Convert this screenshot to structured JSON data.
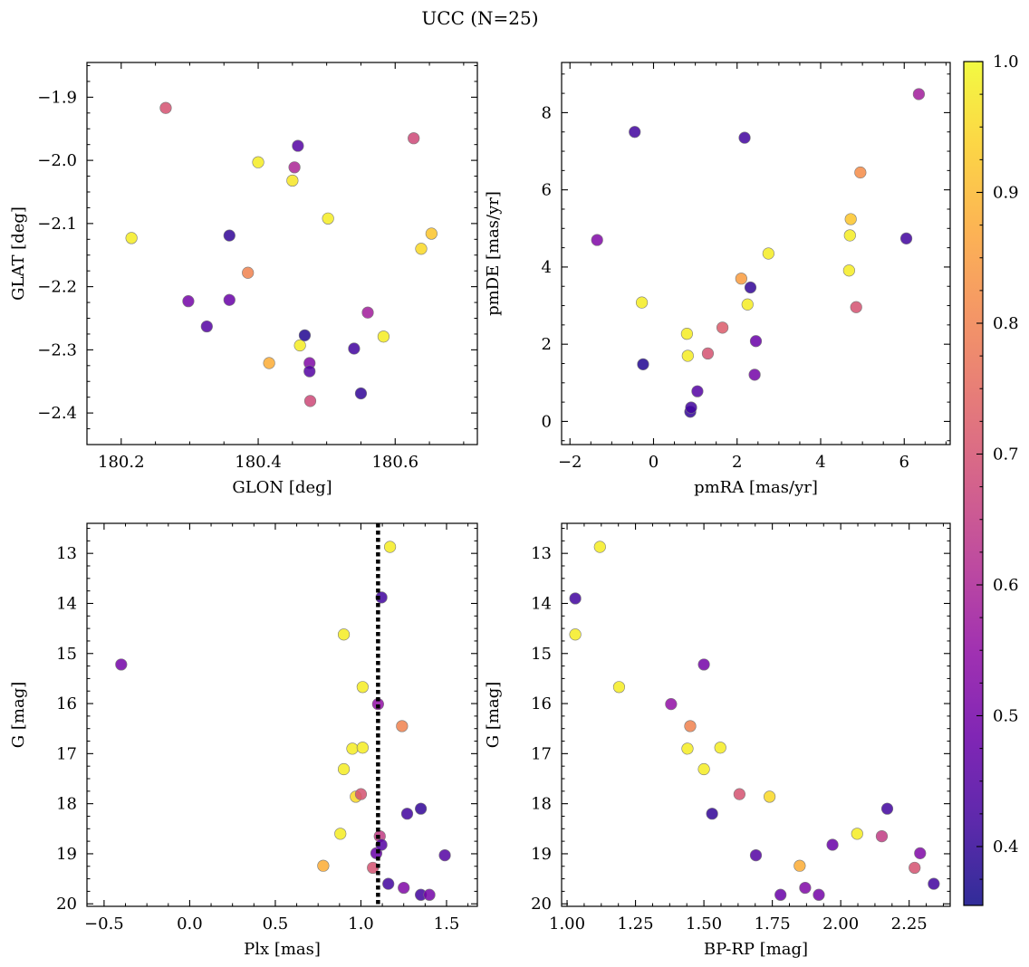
{
  "title": "UCC (N=25)",
  "colorbar": {
    "colormap": "plasma",
    "vmin": 0.355,
    "vmax": 1.0,
    "ticks": [
      0.4,
      0.5,
      0.6,
      0.7,
      0.8,
      0.9,
      1.0
    ],
    "tick_labels": [
      "0.4",
      "0.5",
      "0.6",
      "0.7",
      "0.8",
      "0.9",
      "1.0"
    ]
  },
  "chart_data": [
    {
      "type": "scatter",
      "id": "sky",
      "xlabel": "GLON [deg]",
      "ylabel": "GLAT [deg]",
      "xlim": [
        180.15,
        180.72
      ],
      "ylim": [
        -2.45,
        -1.845
      ],
      "xticks": [
        180.2,
        180.4,
        180.6
      ],
      "xtick_labels": [
        "180.2",
        "180.4",
        "180.6"
      ],
      "yticks": [
        -1.9,
        -2.0,
        -2.1,
        -2.2,
        -2.3,
        -2.4
      ],
      "ytick_labels": [
        "−1.9",
        "−2.0",
        "−2.1",
        "−2.2",
        "−2.3",
        "−2.4"
      ],
      "x": [
        180.215,
        180.265,
        180.298,
        180.325,
        180.358,
        180.358,
        180.385,
        180.4,
        180.416,
        180.45,
        180.453,
        180.458,
        180.461,
        180.468,
        180.475,
        180.475,
        180.476,
        180.502,
        180.54,
        180.55,
        180.56,
        180.583,
        180.627,
        180.638,
        180.653
      ],
      "y": [
        -2.123,
        -1.917,
        -2.223,
        -2.263,
        -2.119,
        -2.221,
        -2.178,
        -2.003,
        -2.321,
        -2.032,
        -2.011,
        -1.977,
        -2.293,
        -2.277,
        -2.321,
        -2.334,
        -2.381,
        -2.092,
        -2.298,
        -2.369,
        -2.241,
        -2.279,
        -1.965,
        -2.14,
        -2.116
      ],
      "c": [
        0.98,
        0.7,
        0.5,
        0.45,
        0.4,
        0.48,
        0.8,
        0.98,
        0.88,
        0.97,
        0.6,
        0.45,
        0.98,
        0.38,
        0.52,
        0.45,
        0.68,
        0.98,
        0.42,
        0.4,
        0.58,
        0.98,
        0.68,
        0.95,
        0.92
      ]
    },
    {
      "type": "scatter",
      "id": "proper-motion",
      "xlabel": "pmRA [mas/yr]",
      "ylabel": "pmDE [mas/yr]",
      "xlim": [
        -2.2,
        7.1
      ],
      "ylim": [
        -0.6,
        9.3
      ],
      "xticks": [
        -2,
        0,
        2,
        4,
        6
      ],
      "xtick_labels": [
        "−2",
        "0",
        "2",
        "4",
        "6"
      ],
      "yticks": [
        0,
        2,
        4,
        6,
        8
      ],
      "ytick_labels": [
        "0",
        "2",
        "4",
        "6",
        "8"
      ],
      "x": [
        -1.35,
        -0.45,
        -0.28,
        -0.25,
        0.8,
        0.82,
        0.88,
        0.9,
        1.05,
        1.3,
        1.65,
        2.1,
        2.18,
        2.25,
        2.32,
        2.42,
        2.45,
        2.75,
        4.68,
        4.7,
        4.72,
        4.85,
        4.95,
        6.05,
        6.35
      ],
      "y": [
        4.7,
        7.5,
        3.08,
        1.48,
        2.27,
        1.7,
        0.25,
        0.36,
        0.78,
        1.76,
        2.43,
        3.7,
        7.35,
        3.03,
        3.47,
        1.21,
        2.08,
        4.35,
        3.91,
        4.82,
        5.24,
        2.96,
        6.45,
        4.74,
        8.48
      ],
      "c": [
        0.52,
        0.42,
        0.98,
        0.38,
        0.98,
        0.98,
        0.4,
        0.42,
        0.45,
        0.7,
        0.72,
        0.85,
        0.42,
        0.98,
        0.4,
        0.5,
        0.48,
        0.98,
        0.98,
        0.98,
        0.92,
        0.7,
        0.82,
        0.42,
        0.58
      ]
    },
    {
      "type": "scatter",
      "id": "plx-g",
      "xlabel": "Plx [mas]",
      "ylabel": "G [mag]",
      "xlim": [
        -0.6,
        1.68
      ],
      "ylim": [
        20.05,
        12.4
      ],
      "xticks": [
        -0.5,
        0.0,
        0.5,
        1.0,
        1.5
      ],
      "xtick_labels": [
        "−0.5",
        "0.0",
        "0.5",
        "1.0",
        "1.5"
      ],
      "yticks": [
        13,
        14,
        15,
        16,
        17,
        18,
        19,
        20
      ],
      "ytick_labels": [
        "13",
        "14",
        "15",
        "16",
        "17",
        "18",
        "19",
        "20"
      ],
      "vline": 1.1,
      "x": [
        -0.4,
        0.78,
        0.88,
        0.9,
        0.9,
        0.95,
        0.97,
        1.0,
        1.01,
        1.01,
        1.07,
        1.09,
        1.1,
        1.11,
        1.12,
        1.12,
        1.16,
        1.17,
        1.24,
        1.25,
        1.27,
        1.35,
        1.35,
        1.4,
        1.49
      ],
      "y": [
        15.22,
        19.24,
        18.6,
        14.62,
        17.31,
        16.9,
        17.86,
        17.81,
        15.67,
        16.88,
        19.28,
        18.99,
        16.01,
        18.65,
        18.82,
        13.88,
        19.6,
        12.87,
        16.45,
        19.68,
        18.2,
        18.1,
        19.82,
        19.82,
        19.03
      ],
      "c": [
        0.5,
        0.88,
        0.98,
        0.98,
        0.98,
        0.98,
        0.95,
        0.7,
        0.98,
        0.98,
        0.7,
        0.48,
        0.55,
        0.65,
        0.45,
        0.42,
        0.42,
        0.98,
        0.8,
        0.52,
        0.42,
        0.4,
        0.42,
        0.5,
        0.45
      ]
    },
    {
      "type": "scatter",
      "id": "bprp-g",
      "xlabel": "BP-RP [mag]",
      "ylabel": "G [mag]",
      "xlim": [
        0.98,
        2.4
      ],
      "ylim": [
        20.05,
        12.4
      ],
      "xticks": [
        1.0,
        1.25,
        1.5,
        1.75,
        2.0,
        2.25
      ],
      "xtick_labels": [
        "1.00",
        "1.25",
        "1.50",
        "1.75",
        "2.00",
        "2.25"
      ],
      "yticks": [
        13,
        14,
        15,
        16,
        17,
        18,
        19,
        20
      ],
      "ytick_labels": [
        "13",
        "14",
        "15",
        "16",
        "17",
        "18",
        "19",
        "20"
      ],
      "x": [
        1.03,
        1.03,
        1.12,
        1.19,
        1.38,
        1.44,
        1.45,
        1.5,
        1.5,
        1.53,
        1.56,
        1.63,
        1.69,
        1.74,
        1.78,
        1.85,
        1.87,
        1.92,
        1.97,
        2.06,
        2.15,
        2.17,
        2.27,
        2.29,
        2.34
      ],
      "y": [
        13.9,
        14.62,
        12.87,
        15.67,
        16.01,
        16.9,
        16.45,
        17.31,
        15.22,
        18.2,
        16.88,
        17.81,
        19.03,
        17.86,
        19.82,
        19.24,
        19.68,
        19.82,
        18.82,
        18.6,
        18.65,
        18.1,
        19.28,
        18.99,
        19.6
      ],
      "c": [
        0.42,
        0.98,
        0.98,
        0.98,
        0.55,
        0.98,
        0.8,
        0.98,
        0.5,
        0.4,
        0.98,
        0.7,
        0.45,
        0.95,
        0.48,
        0.88,
        0.52,
        0.5,
        0.48,
        0.98,
        0.65,
        0.42,
        0.7,
        0.52,
        0.42
      ]
    }
  ]
}
